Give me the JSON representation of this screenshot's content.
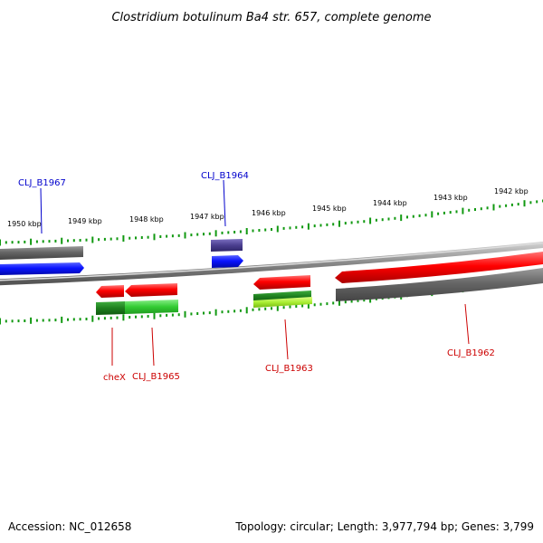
{
  "title": "Clostridium botulinum Ba4 str. 657, complete genome",
  "footer": {
    "accession": "Accession: NC_012658",
    "summary": "Topology: circular; Length: 3,977,794 bp; Genes: 3,799"
  },
  "scale_ticks": [
    "1950 kbp",
    "1949 kbp",
    "1948 kbp",
    "1947 kbp",
    "1946 kbp",
    "1945 kbp",
    "1944 kbp",
    "1943 kbp",
    "1942 kbp"
  ],
  "genes": [
    {
      "label": "CLJ_B1967",
      "strand": "forward",
      "color": "#0000cc"
    },
    {
      "label": "CLJ_B1964",
      "strand": "forward",
      "color": "#0000cc"
    },
    {
      "label": "cheX",
      "strand": "reverse",
      "color": "#cc0000"
    },
    {
      "label": "CLJ_B1965",
      "strand": "reverse",
      "color": "#cc0000"
    },
    {
      "label": "CLJ_B1963",
      "strand": "reverse",
      "color": "#cc0000"
    },
    {
      "label": "CLJ_B1962",
      "strand": "reverse",
      "color": "#cc0000"
    }
  ],
  "colors": {
    "forward_cds": "#0a14ff",
    "reverse_cds": "#ff0000",
    "gene_bar": "#666666",
    "rna_green": "#33cc33",
    "backbone": "#888888",
    "tick": "#119911"
  }
}
